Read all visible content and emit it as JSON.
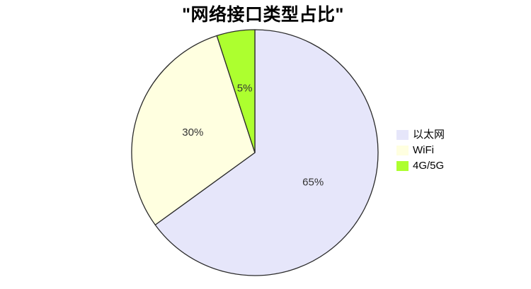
{
  "chart_data": {
    "type": "pie",
    "title": "\"网络接口类型占比\"",
    "categories": [
      "以太网",
      "WiFi",
      "4G/5G"
    ],
    "values": [
      65,
      30,
      5
    ],
    "percent_labels": [
      "65%",
      "30%",
      "5%"
    ],
    "colors": [
      "#E6E6FA",
      "#FFFFE0",
      "#ADFF2F"
    ],
    "edge_color": "#2a2a2a",
    "percent_label_color": "#333333",
    "start_angle": "top",
    "direction": "clockwise",
    "legend_position": "center-right",
    "legend_frame": false,
    "background": "#FFFFFF"
  },
  "legend": {
    "items": [
      {
        "label": "以太网",
        "color": "#E6E6FA"
      },
      {
        "label": "WiFi",
        "color": "#FFFFE0"
      },
      {
        "label": "4G/5G",
        "color": "#ADFF2F"
      }
    ]
  }
}
